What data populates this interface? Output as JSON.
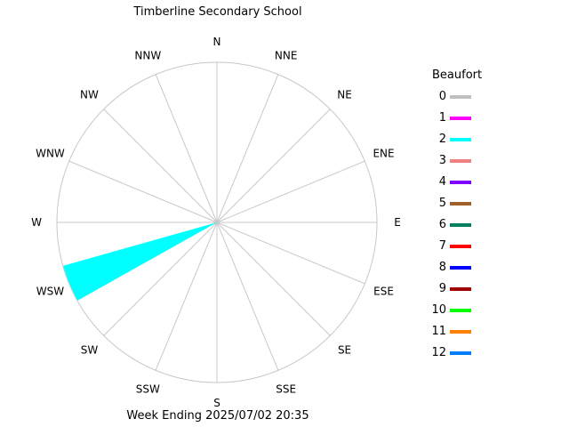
{
  "header": {
    "title": "Timberline Secondary School"
  },
  "footer": {
    "text": "Week Ending 2025/07/02 20:35"
  },
  "legend": {
    "title": "Beaufort",
    "items": [
      {
        "label": "0",
        "color": "#c0c0c0"
      },
      {
        "label": "1",
        "color": "#ff00ff"
      },
      {
        "label": "2",
        "color": "#00ffff"
      },
      {
        "label": "3",
        "color": "#f08080"
      },
      {
        "label": "4",
        "color": "#8000ff"
      },
      {
        "label": "5",
        "color": "#a0602a"
      },
      {
        "label": "6",
        "color": "#008060"
      },
      {
        "label": "7",
        "color": "#ff0000"
      },
      {
        "label": "8",
        "color": "#0000ff"
      },
      {
        "label": "9",
        "color": "#a00000"
      },
      {
        "label": "10",
        "color": "#00ff00"
      },
      {
        "label": "11",
        "color": "#ff8000"
      },
      {
        "label": "12",
        "color": "#0080ff"
      }
    ]
  },
  "chart_data": {
    "type": "wind-rose",
    "title": "Timberline Secondary School",
    "directions": [
      "N",
      "NNE",
      "NE",
      "ENE",
      "E",
      "ESE",
      "SE",
      "SSE",
      "S",
      "SSW",
      "SW",
      "WSW",
      "W",
      "WNW",
      "NW",
      "NNW"
    ],
    "grid": true,
    "legend_placement": "right",
    "rmax": 1.0,
    "series": [
      {
        "name": "2",
        "color": "#00ffff",
        "values": [
          0,
          0,
          0,
          0,
          0,
          0,
          0,
          0,
          0,
          0,
          0,
          1.0,
          0,
          0,
          0,
          0
        ]
      }
    ]
  }
}
